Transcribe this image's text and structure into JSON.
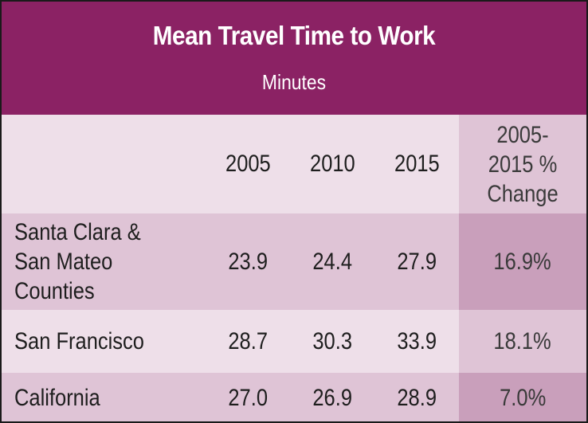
{
  "chart_data": {
    "type": "table",
    "title": "Mean Travel Time to Work",
    "subtitle": "Minutes",
    "columns": [
      "",
      "2005",
      "2010",
      "2015",
      "2005-2015 % Change"
    ],
    "rows": [
      {
        "label": "Santa Clara & San Mateo Counties",
        "values": [
          "23.9",
          "24.4",
          "27.9",
          "16.9%"
        ]
      },
      {
        "label": "San Francisco",
        "values": [
          "28.7",
          "30.3",
          "33.9",
          "18.1%"
        ]
      },
      {
        "label": "California",
        "values": [
          "27.0",
          "26.9",
          "28.9",
          "7.0%"
        ]
      }
    ]
  },
  "colors": {
    "header_background": "#8b2264",
    "header_text": "#ffffff",
    "row_light": "#eedfe9",
    "row_mid": "#dfc4d6",
    "change_column_light": "#dfc4d6",
    "change_column_dark": "#c99fbb",
    "body_text": "#1e1e1e"
  }
}
